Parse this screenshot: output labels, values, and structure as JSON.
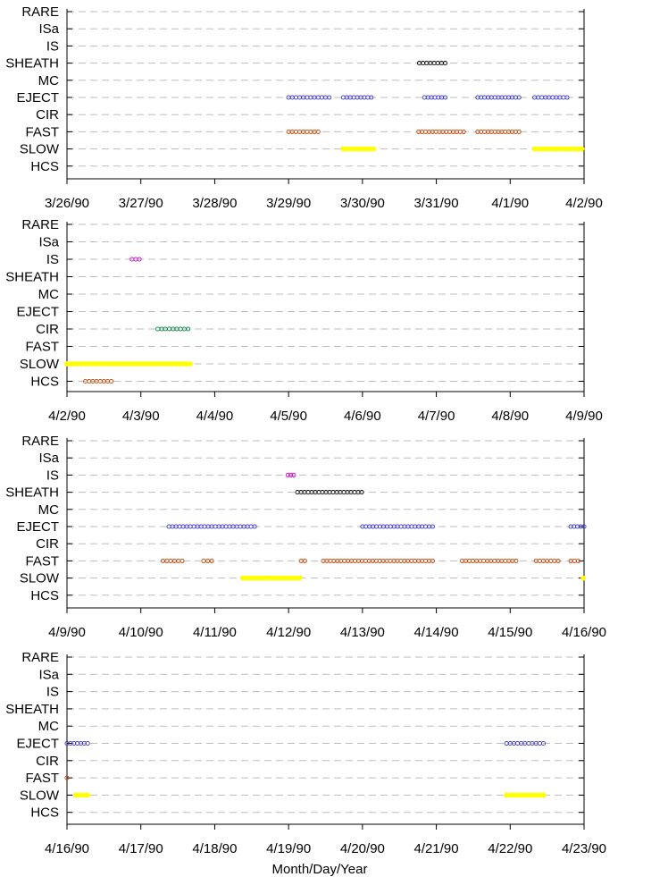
{
  "chart_data": {
    "type": "scatter",
    "xlabel": "Month/Day/Year",
    "categories": [
      "RARE",
      "ISa",
      "IS",
      "SHEATH",
      "MC",
      "EJECT",
      "CIR",
      "FAST",
      "SLOW",
      "HCS"
    ],
    "colors": {
      "RARE": "#000000",
      "ISa": "#000000",
      "IS": "#cc00cc",
      "SHEATH": "#000000",
      "MC": "#000000",
      "EJECT": "#3333cc",
      "CIR": "#008040",
      "FAST": "#cc4400",
      "SLOW": "#ffff00",
      "HCS": "#cc4400"
    },
    "panels": [
      {
        "xticks": [
          "3/26/90",
          "3/27/90",
          "3/28/90",
          "3/29/90",
          "3/30/90",
          "3/31/90",
          "4/1/90",
          "4/2/90"
        ],
        "xlim": [
          0,
          7
        ],
        "intervals": [
          {
            "category": "SHEATH",
            "start": 4.77,
            "end": 5.12
          },
          {
            "category": "EJECT",
            "start": 3.0,
            "end": 3.55
          },
          {
            "category": "EJECT",
            "start": 3.74,
            "end": 4.12
          },
          {
            "category": "EJECT",
            "start": 4.84,
            "end": 5.12
          },
          {
            "category": "EJECT",
            "start": 5.56,
            "end": 6.12
          },
          {
            "category": "EJECT",
            "start": 6.33,
            "end": 6.77
          },
          {
            "category": "FAST",
            "start": 3.0,
            "end": 3.4
          },
          {
            "category": "FAST",
            "start": 4.76,
            "end": 5.37
          },
          {
            "category": "FAST",
            "start": 5.56,
            "end": 6.12
          },
          {
            "category": "SLOW",
            "start": 3.74,
            "end": 4.15
          },
          {
            "category": "SLOW",
            "start": 6.33,
            "end": 6.97
          }
        ]
      },
      {
        "xticks": [
          "4/2/90",
          "4/3/90",
          "4/4/90",
          "4/5/90",
          "4/6/90",
          "4/7/90",
          "4/8/90",
          "4/9/90"
        ],
        "xlim": [
          0,
          7
        ],
        "intervals": [
          {
            "category": "IS",
            "start": 0.88,
            "end": 0.98
          },
          {
            "category": "CIR",
            "start": 1.23,
            "end": 1.64
          },
          {
            "category": "SLOW",
            "start": 0.0,
            "end": 1.67
          },
          {
            "category": "HCS",
            "start": 0.25,
            "end": 0.6
          }
        ]
      },
      {
        "xticks": [
          "4/9/90",
          "4/10/90",
          "4/11/90",
          "4/12/90",
          "4/13/90",
          "4/14/90",
          "4/15/90",
          "4/16/90"
        ],
        "xlim": [
          0,
          7
        ],
        "intervals": [
          {
            "category": "IS",
            "start": 2.99,
            "end": 3.07
          },
          {
            "category": "SHEATH",
            "start": 3.12,
            "end": 3.99
          },
          {
            "category": "EJECT",
            "start": 1.38,
            "end": 2.54
          },
          {
            "category": "EJECT",
            "start": 4.0,
            "end": 4.95
          },
          {
            "category": "EJECT",
            "start": 6.82,
            "end": 7.0
          },
          {
            "category": "FAST",
            "start": 1.3,
            "end": 1.56
          },
          {
            "category": "FAST",
            "start": 1.85,
            "end": 1.96
          },
          {
            "category": "FAST",
            "start": 3.17,
            "end": 3.22
          },
          {
            "category": "FAST",
            "start": 3.47,
            "end": 4.95
          },
          {
            "category": "FAST",
            "start": 5.35,
            "end": 6.08
          },
          {
            "category": "FAST",
            "start": 6.35,
            "end": 6.65
          },
          {
            "category": "FAST",
            "start": 6.82,
            "end": 6.92
          },
          {
            "category": "SLOW",
            "start": 2.38,
            "end": 3.15
          },
          {
            "category": "SLOW",
            "start": 6.99,
            "end": 7.0
          }
        ]
      },
      {
        "xticks": [
          "4/16/90",
          "4/17/90",
          "4/18/90",
          "4/19/90",
          "4/20/90",
          "4/21/90",
          "4/22/90",
          "4/23/90"
        ],
        "xlim": [
          0,
          7
        ],
        "intervals": [
          {
            "category": "EJECT",
            "start": 0.0,
            "end": 0.28
          },
          {
            "category": "FAST",
            "start": 0.0,
            "end": 0.02
          },
          {
            "category": "SLOW",
            "start": 0.12,
            "end": 0.28
          },
          {
            "category": "EJECT",
            "start": 5.95,
            "end": 6.45
          },
          {
            "category": "SLOW",
            "start": 5.95,
            "end": 6.45
          }
        ]
      }
    ]
  }
}
